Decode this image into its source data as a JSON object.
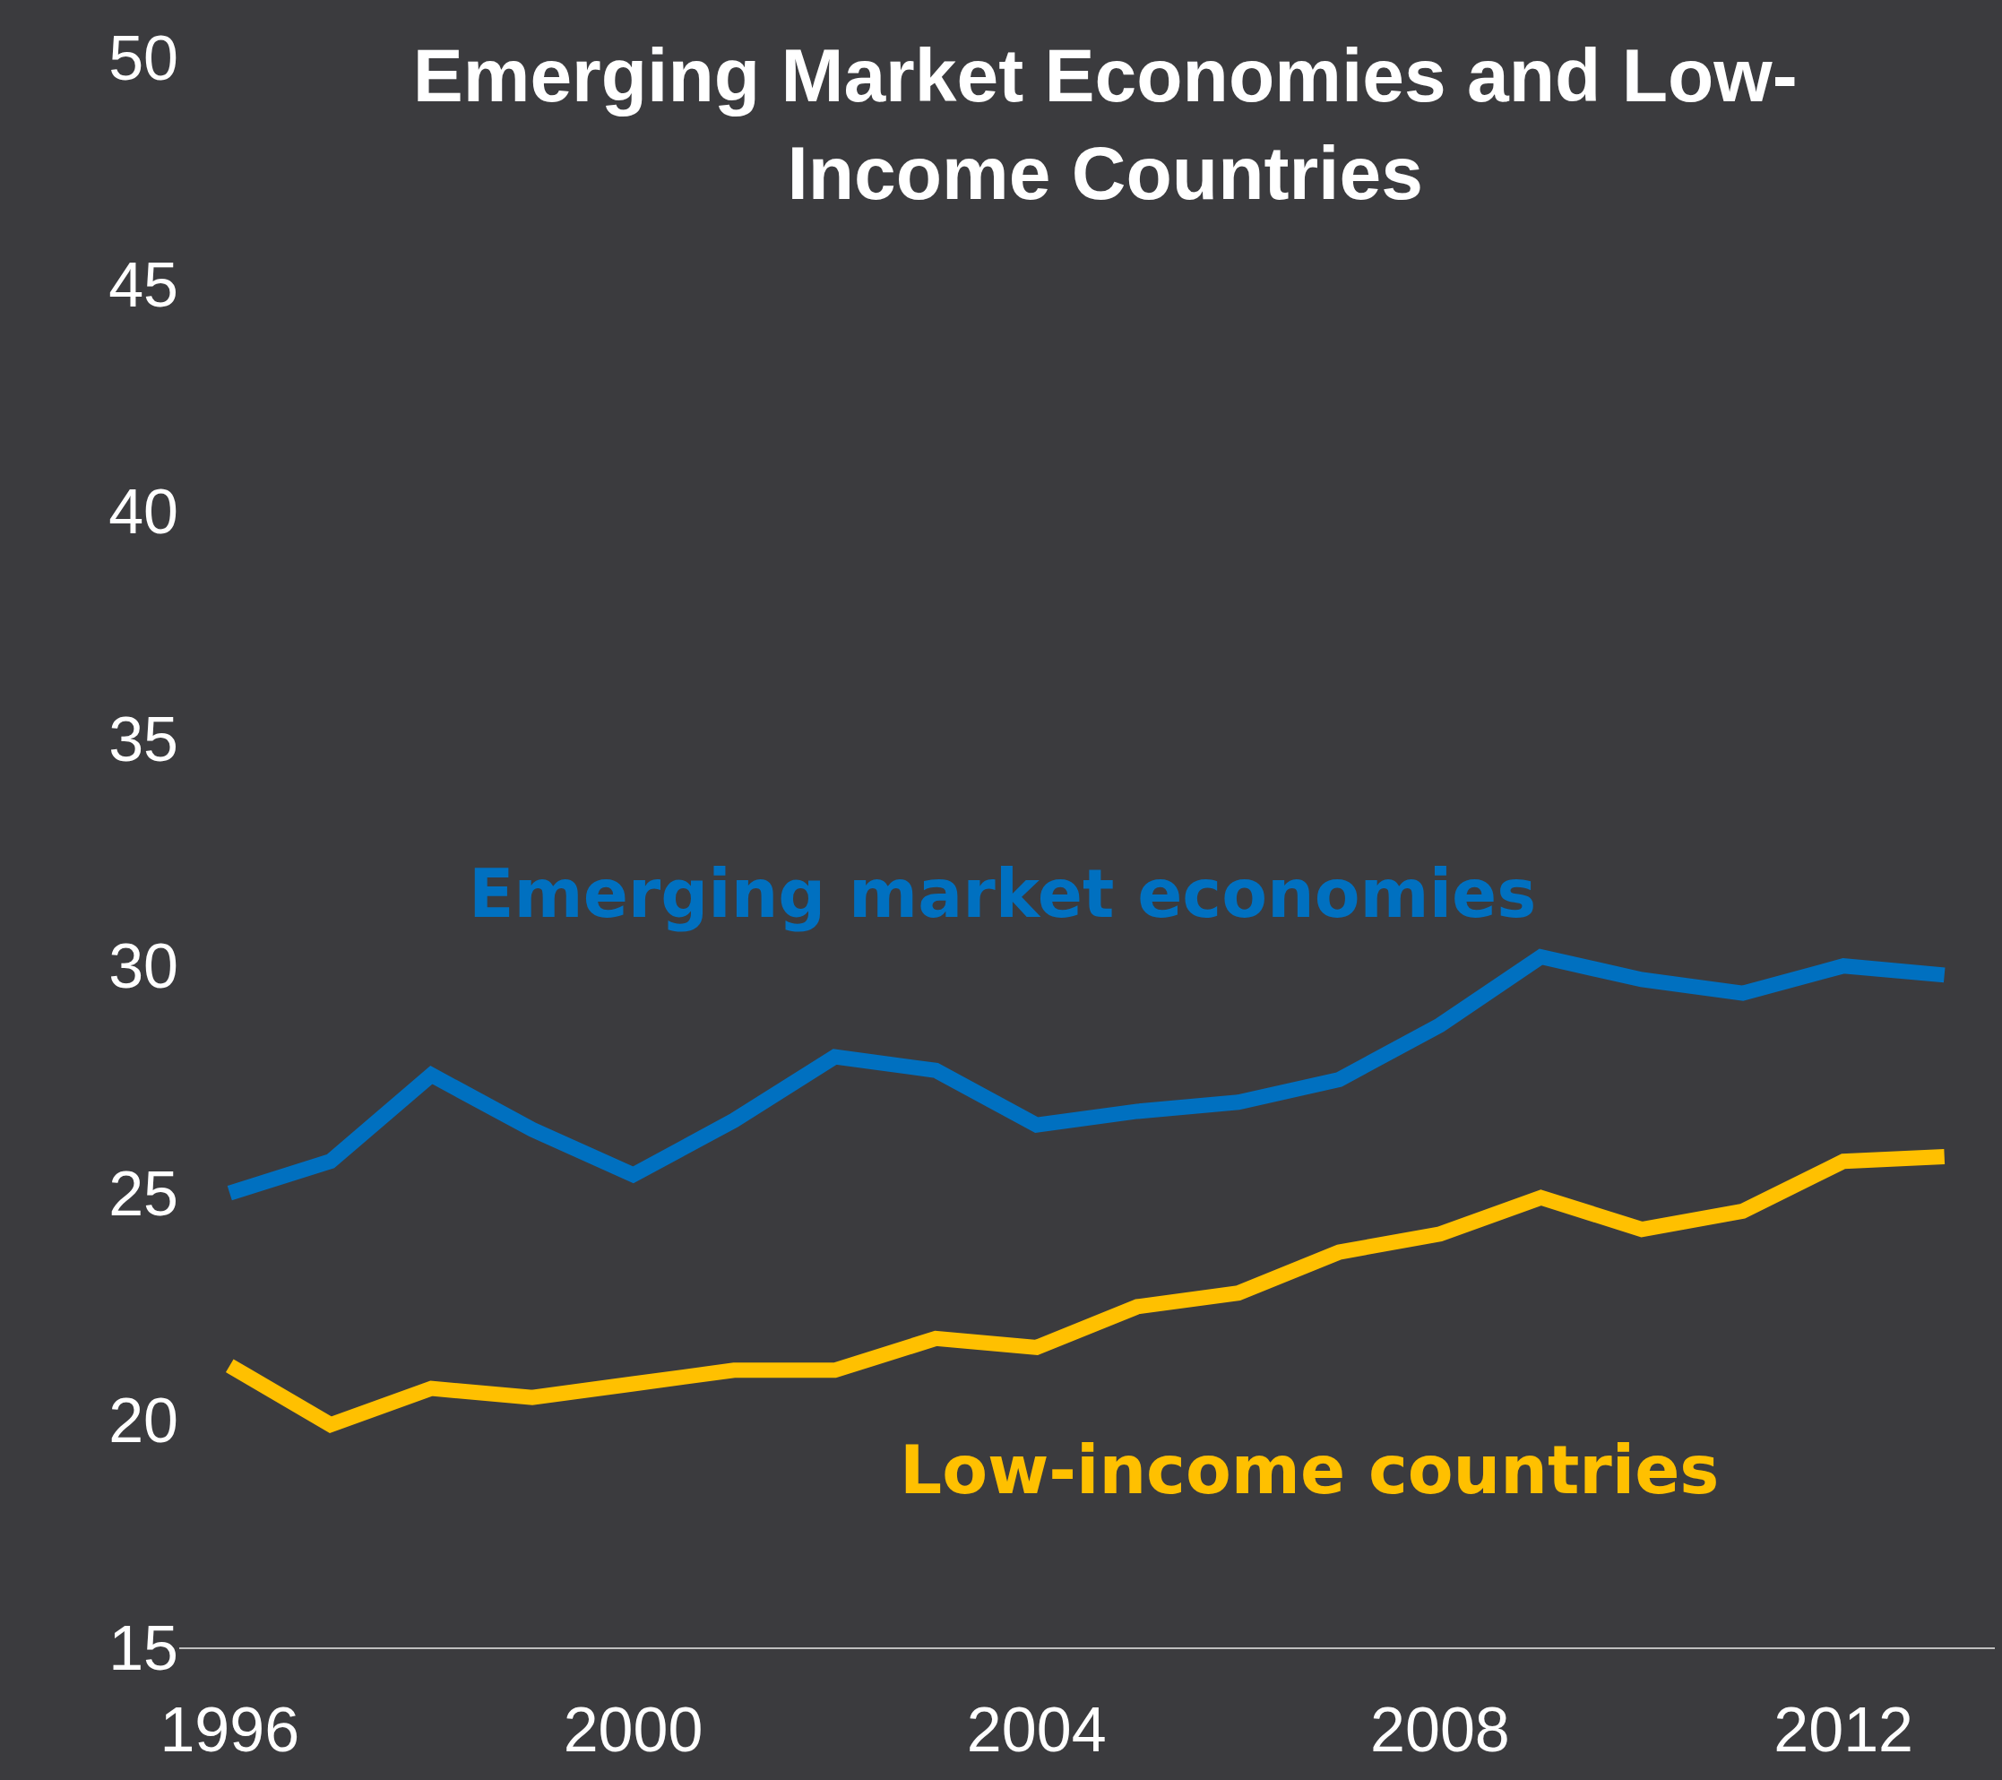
{
  "chart_data": {
    "type": "line",
    "title": "Emerging Market Economies and Low-Income Countries",
    "x": [
      1996,
      1997,
      1998,
      1999,
      2000,
      2001,
      2002,
      2003,
      2004,
      2005,
      2006,
      2007,
      2008,
      2009,
      2010,
      2011,
      2012,
      2013
    ],
    "series": [
      {
        "name": "Emerging market economies",
        "color": "#0070c0",
        "values": [
          25.0,
          25.7,
          27.6,
          26.4,
          25.4,
          26.6,
          28.0,
          27.7,
          26.5,
          26.8,
          27.0,
          27.5,
          28.7,
          30.2,
          29.7,
          29.4,
          30.0,
          29.8
        ]
      },
      {
        "name": "Low-income countries",
        "color": "#ffc000",
        "values": [
          21.2,
          19.9,
          20.7,
          20.5,
          20.8,
          21.1,
          21.1,
          21.8,
          21.6,
          22.5,
          22.8,
          23.7,
          24.1,
          24.9,
          24.2,
          24.6,
          25.7,
          25.8
        ]
      }
    ],
    "xlim": [
      1995.5,
      2013.5
    ],
    "xticks": [
      1996,
      2000,
      2004,
      2008,
      2012
    ],
    "ylim": [
      15,
      50
    ],
    "yticks": [
      15,
      20,
      25,
      30,
      35,
      40,
      45,
      50
    ],
    "grid": false,
    "legend": false,
    "marker": "none",
    "line_style": "solid"
  }
}
